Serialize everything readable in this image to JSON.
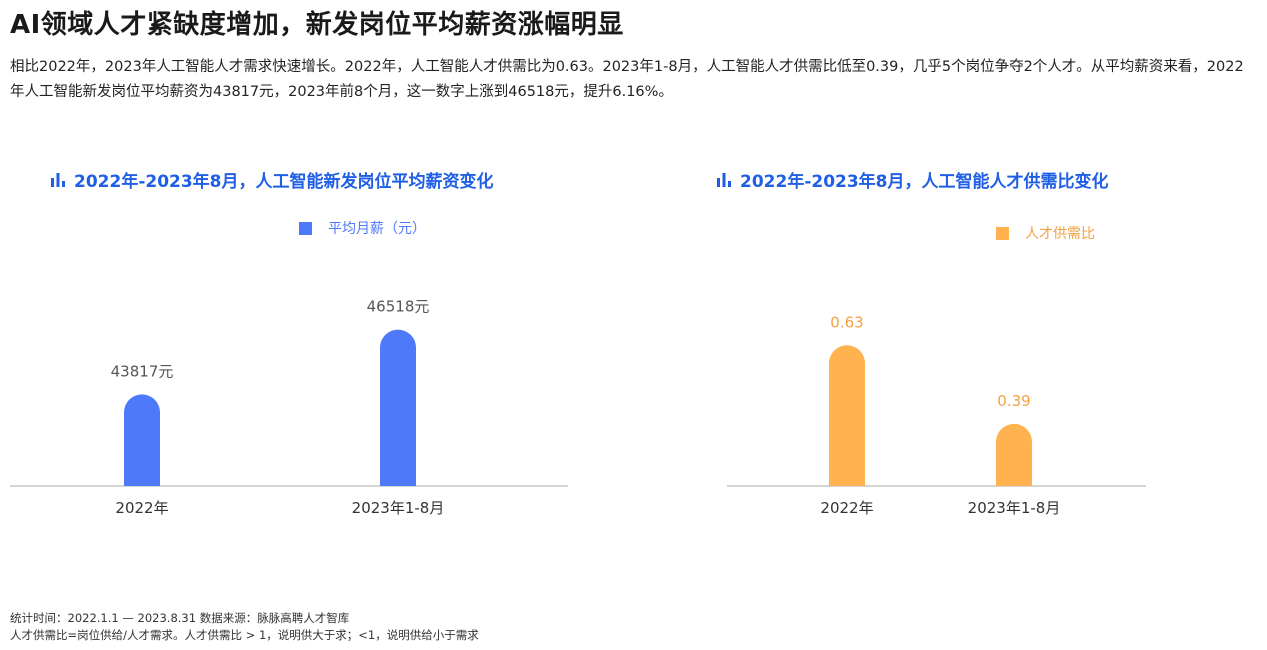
{
  "title": "AI领域人才紧缺度增加，新发岗位平均薪资涨幅明显",
  "summary": "相比2022年，2023年人工智能人才需求快速增长。2022年，人工智能人才供需比为0.63。2023年1-8月，人工智能人才供需比低至0.39，几乎5个岗位争夺2个人才。从平均薪资来看，2022年人工智能新发岗位平均薪资为43817元，2023年前8个月，这一数字上涨到46518元，提升6.16%。",
  "charts": [
    {
      "icon": "bar-chart-icon",
      "title": "2022年-2023年8月，人工智能新发岗位平均薪资变化",
      "legend": "平均月薪（元）",
      "color": "#4f79fb",
      "label_color": "#555555"
    },
    {
      "icon": "bar-chart-icon",
      "title": "2022年-2023年8月，人工智能人才供需比变化",
      "legend": "人才供需比",
      "color": "#ffb24f",
      "label_color": "#f5a041"
    }
  ],
  "chart_data": [
    {
      "type": "bar",
      "title": "2022年-2023年8月，人工智能新发岗位平均薪资变化",
      "categories": [
        "2022年",
        "2023年1-8月"
      ],
      "series": [
        {
          "name": "平均月薪（元）",
          "values": [
            43817,
            46518
          ]
        }
      ],
      "data_labels": [
        "43817元",
        "46518元"
      ],
      "legend_position": "top-center",
      "grid": false,
      "ylim": [
        40000,
        47500
      ]
    },
    {
      "type": "bar",
      "title": "2022年-2023年8月，人工智能人才供需比变化",
      "categories": [
        "2022年",
        "2023年1-8月"
      ],
      "series": [
        {
          "name": "人才供需比",
          "values": [
            0.63,
            0.39
          ]
        }
      ],
      "data_labels": [
        "0.63",
        "0.39"
      ],
      "legend_position": "top-right",
      "grid": false,
      "ylim": [
        0.2,
        0.75
      ]
    }
  ],
  "footnote": {
    "line1": "统计时间：2022.1.1 — 2023.8.31  数据来源：脉脉高聘人才智库",
    "line2": "人才供需比=岗位供给/人才需求。人才供需比 > 1，说明供大于求；<1，说明供给小于需求"
  }
}
